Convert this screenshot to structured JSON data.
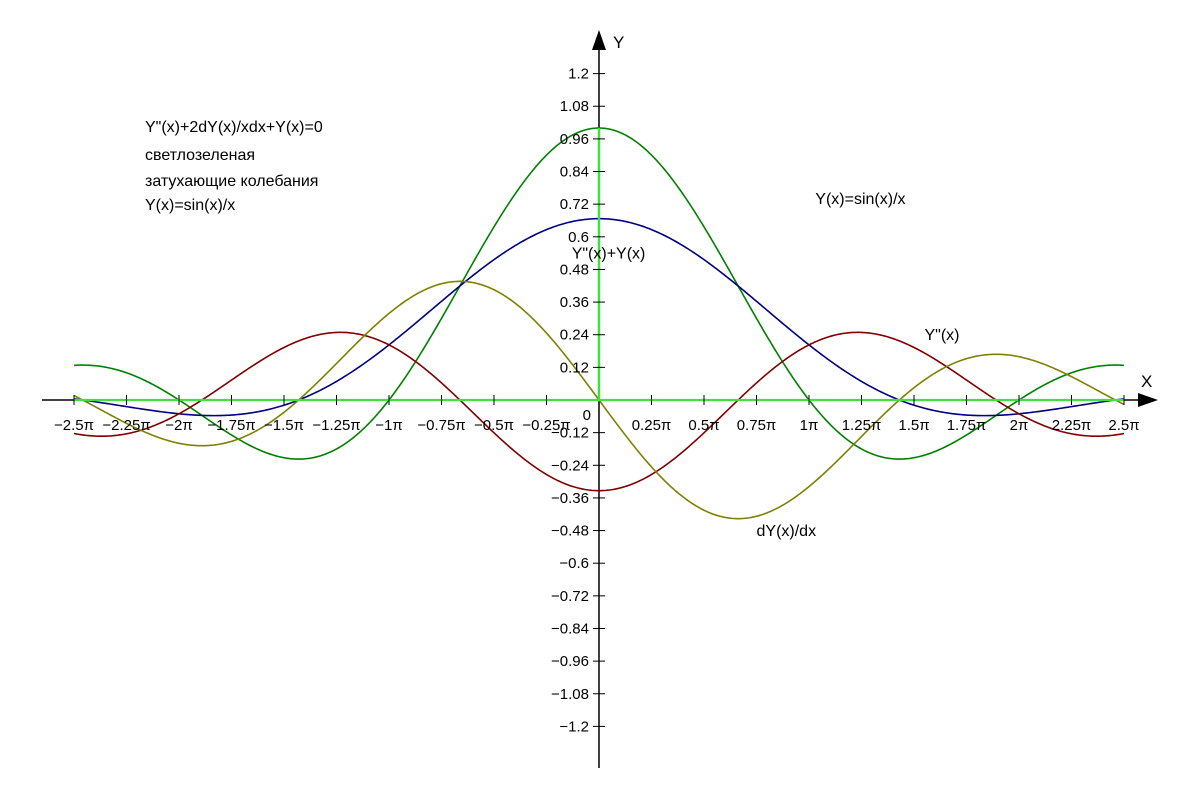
{
  "notes": [
    "Y\"(x)+2dY(x)/xdx+Y(x)=0",
    "светлозеленая",
    "затухающие колебания",
    "Y(x)=sin(x)/x"
  ],
  "chart_data": {
    "type": "line",
    "xlabel": "X",
    "ylabel": "Y",
    "xlim_pi": [
      -2.5,
      2.5
    ],
    "ylim": [
      -1.2,
      1.2
    ],
    "grid": false,
    "x_ticks": [
      {
        "v": -2.5,
        "label": "−2.5π"
      },
      {
        "v": -2.25,
        "label": "−2.25π"
      },
      {
        "v": -2,
        "label": "−2π"
      },
      {
        "v": -1.75,
        "label": "−1.75π"
      },
      {
        "v": -1.5,
        "label": "−1.5π"
      },
      {
        "v": -1.25,
        "label": "−1.25π"
      },
      {
        "v": -1,
        "label": "−1π"
      },
      {
        "v": -0.75,
        "label": "−0.75π"
      },
      {
        "v": -0.5,
        "label": "−0.5π"
      },
      {
        "v": -0.25,
        "label": "−0.25π"
      },
      {
        "v": 0.25,
        "label": "0.25π"
      },
      {
        "v": 0.5,
        "label": "0.5π"
      },
      {
        "v": 0.75,
        "label": "0.75π"
      },
      {
        "v": 1,
        "label": "1π"
      },
      {
        "v": 1.25,
        "label": "1.25π"
      },
      {
        "v": 1.5,
        "label": "1.5π"
      },
      {
        "v": 1.75,
        "label": "1.75π"
      },
      {
        "v": 2,
        "label": "2π"
      },
      {
        "v": 2.25,
        "label": "2.25π"
      },
      {
        "v": 2.5,
        "label": "2.5π"
      }
    ],
    "origin_label": "0",
    "y_ticks": [
      {
        "v": 1.2,
        "label": "1.2"
      },
      {
        "v": 1.08,
        "label": "1.08"
      },
      {
        "v": 0.96,
        "label": "0.96"
      },
      {
        "v": 0.84,
        "label": "0.84"
      },
      {
        "v": 0.72,
        "label": "0.72"
      },
      {
        "v": 0.6,
        "label": "0.6"
      },
      {
        "v": 0.48,
        "label": "0.48"
      },
      {
        "v": 0.36,
        "label": "0.36"
      },
      {
        "v": 0.24,
        "label": "0.24"
      },
      {
        "v": 0.12,
        "label": "0.12"
      },
      {
        "v": -0.12,
        "label": "−0.12"
      },
      {
        "v": -0.24,
        "label": "−0.24"
      },
      {
        "v": -0.36,
        "label": "−0.36"
      },
      {
        "v": -0.48,
        "label": "−0.48"
      },
      {
        "v": -0.6,
        "label": "−0.6"
      },
      {
        "v": -0.72,
        "label": "−0.72"
      },
      {
        "v": -0.84,
        "label": "−0.84"
      },
      {
        "v": -0.96,
        "label": "−0.96"
      },
      {
        "v": -1.08,
        "label": "−1.08"
      },
      {
        "v": -1.2,
        "label": "−1.2"
      }
    ],
    "series": [
      {
        "name": "Y(x)=sin(x)/x",
        "func": "sinc",
        "color": "#008000",
        "label_at_pi": [
          1.03,
          0.72
        ]
      },
      {
        "name": "Y\"(x)+Y(x)",
        "func": "d2_plus_y",
        "color": "#000080",
        "label_at_pi": [
          -0.13,
          0.52
        ]
      },
      {
        "name": "Y\"(x)",
        "func": "d2",
        "color": "#800000",
        "label_at_pi": [
          1.55,
          0.22
        ]
      },
      {
        "name": "dY(x)/dx",
        "func": "d1",
        "color": "#808000",
        "label_at_pi": [
          0.75,
          -0.5
        ]
      },
      {
        "name": "",
        "func": "zero",
        "color": "#40e040"
      }
    ]
  }
}
